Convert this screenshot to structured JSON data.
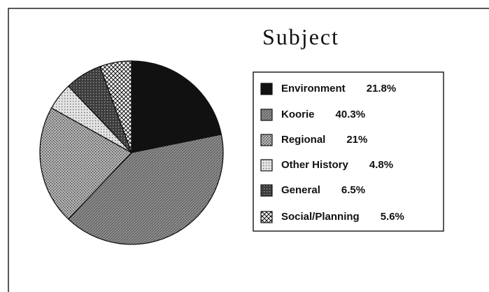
{
  "chart_data": {
    "type": "pie",
    "title": "Subject",
    "categories": [
      "Environment",
      "Koorie",
      "Regional",
      "Other History",
      "General",
      "Social/Planning"
    ],
    "values": [
      21.8,
      40.3,
      21,
      4.8,
      6.5,
      5.6
    ],
    "value_labels": [
      "21.8%",
      "40.3%",
      "21%",
      "4.8%",
      "6.5%",
      "5.6%"
    ],
    "colors": [
      "#111111",
      "#8f8f8f",
      "#b4b4b4",
      "#e2e2e2",
      "#3c3c3c",
      "#ffffff"
    ],
    "legend": "right"
  }
}
